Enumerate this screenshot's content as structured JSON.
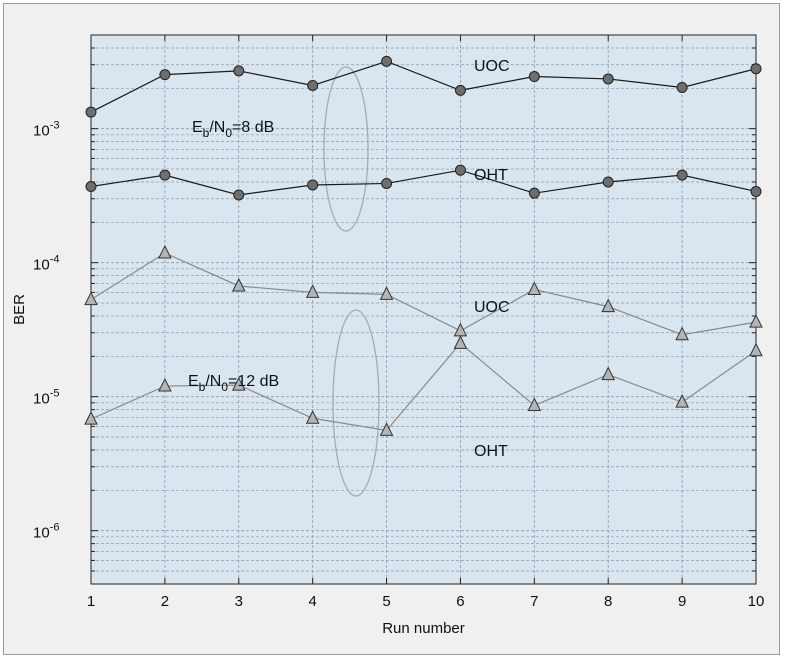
{
  "chart_data": {
    "type": "line",
    "xlabel": "Run number",
    "ylabel": "BER",
    "yscale": "log",
    "xlim": [
      1,
      10
    ],
    "ylim": [
      4e-07,
      0.005
    ],
    "x_ticks": [
      1,
      2,
      3,
      4,
      5,
      6,
      7,
      8,
      9,
      10
    ],
    "y_ticks": [
      {
        "value": 0.001,
        "base": "10",
        "exp": "-3"
      },
      {
        "value": 0.0001,
        "base": "10",
        "exp": "-4"
      },
      {
        "value": 1e-05,
        "base": "10",
        "exp": "-5"
      },
      {
        "value": 1e-06,
        "base": "10",
        "exp": "-6"
      }
    ],
    "grid": true,
    "x": [
      1,
      2,
      3,
      4,
      5,
      6,
      7,
      8,
      9,
      10
    ],
    "series": [
      {
        "marker": "circle",
        "line_color": "#1a1a1a",
        "marker_fill": "#6e6e6e",
        "values": [
          0.00133,
          0.00253,
          0.0027,
          0.0021,
          0.00318,
          0.00193,
          0.00245,
          0.00235,
          0.00203,
          0.0028
        ]
      },
      {
        "marker": "circle",
        "line_color": "#1a1a1a",
        "marker_fill": "#6e6e6e",
        "values": [
          0.00037,
          0.00045,
          0.00032,
          0.00038,
          0.00039,
          0.00049,
          0.00033,
          0.0004,
          0.00045,
          0.00034
        ]
      },
      {
        "marker": "triangle",
        "line_color": "#8a8a8a",
        "marker_fill": "#b4b4b4",
        "values": [
          5.3e-05,
          0.000118,
          6.7e-05,
          6e-05,
          5.8e-05,
          3.1e-05,
          6.3e-05,
          4.7e-05,
          2.9e-05,
          3.6e-05
        ]
      },
      {
        "marker": "triangle",
        "line_color": "#8a8a8a",
        "marker_fill": "#b4b4b4",
        "values": [
          6.8e-06,
          1.2e-05,
          1.22e-05,
          6.9e-06,
          5.6e-06,
          2.5e-05,
          8.6e-06,
          1.46e-05,
          9.1e-06,
          2.2e-05
        ]
      }
    ],
    "annotations": [
      {
        "kind": "series_label",
        "text": "UOC"
      },
      {
        "kind": "series_label",
        "text": "OHT"
      },
      {
        "kind": "series_label",
        "text": "UOC"
      },
      {
        "kind": "series_label",
        "text": "OHT"
      },
      {
        "kind": "ebn0",
        "prefix": "E",
        "sub1": "b",
        "mid": "/N",
        "sub2": "0",
        "suffix": "=8 dB"
      },
      {
        "kind": "ebn0",
        "prefix": "E",
        "sub1": "b",
        "mid": "/N",
        "sub2": "0",
        "suffix": "=12 dB"
      }
    ],
    "colors": {
      "plot_background": "#d9e6f0",
      "outer_background": "#f0f0f0",
      "grid": "#8e9aa5",
      "ellipse": "#aaaaaa"
    }
  }
}
